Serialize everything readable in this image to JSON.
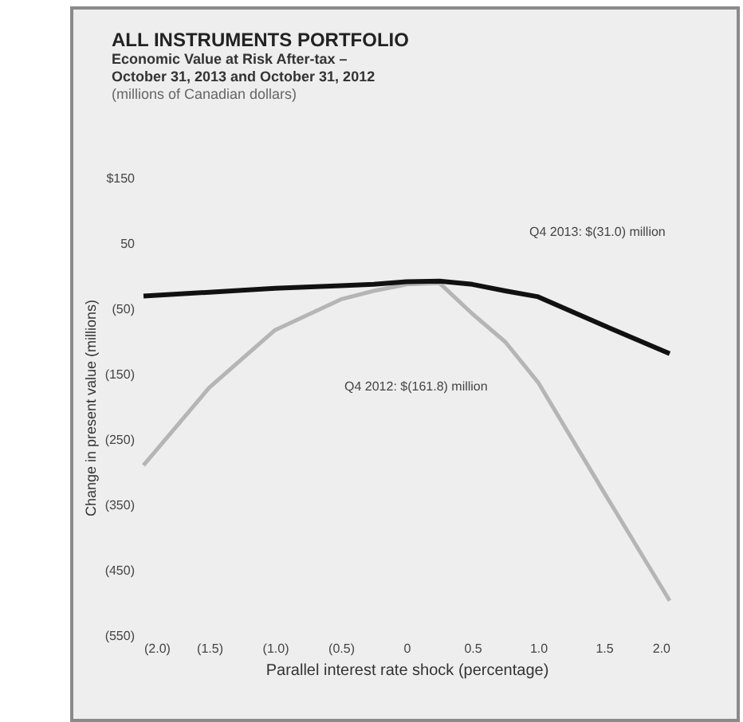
{
  "chart_data": {
    "type": "line",
    "title": "ALL INSTRUMENTS PORTFOLIO",
    "subtitle": "Economic Value at Risk After-tax –\nOctober 31, 2013 and October 31, 2012",
    "xlabel": "Parallel interest rate shock (percentage)",
    "ylabel": "Change in present value (millions)",
    "series": [
      {
        "color": "#b5b5b5",
        "x": [
          -2,
          -1.5,
          -1,
          -0.5,
          -0.25,
          0,
          0.25,
          0.5,
          0.75,
          1,
          1.5,
          2
        ],
        "values": [
          -289,
          -170,
          -82,
          -35,
          -22,
          -12,
          -10,
          -57,
          -100,
          -162,
          -330,
          -496
        ]
      },
      {
        "color": "#111111",
        "x": [
          -2,
          -1.5,
          -1,
          -0.5,
          -0.25,
          0,
          0.25,
          0.5,
          0.75,
          1,
          1.5,
          2
        ],
        "values": [
          -30,
          -24,
          -18,
          -14,
          -12,
          -8,
          -7,
          -12,
          -22,
          -31,
          -75,
          -118
        ]
      }
    ],
    "annotations": [
      "(millions of Canadian dollars)",
      "Q4 2013: $(31.0) million",
      "Q4 2012: $(161.8) million"
    ],
    "xlim": [
      -2,
      2
    ],
    "xticks": [
      {
        "value": -2,
        "label": "(2.0)"
      },
      {
        "value": -1.5,
        "label": "(1.5)"
      },
      {
        "value": -1,
        "label": "(1.0)"
      },
      {
        "value": -0.5,
        "label": "(0.5)"
      },
      0,
      0.5,
      {
        "value": 1,
        "label": "1.0"
      },
      1.5,
      {
        "value": 2,
        "label": "2.0"
      }
    ],
    "ylim": [
      -550,
      150
    ],
    "yticks": [
      {
        "value": 150,
        "label": "$150"
      },
      50,
      {
        "value": -50,
        "label": "(50)"
      },
      {
        "value": -150,
        "label": "(150)"
      },
      {
        "value": -250,
        "label": "(250)"
      },
      {
        "value": -350,
        "label": "(350)"
      },
      {
        "value": -450,
        "label": "(450)"
      },
      {
        "value": -550,
        "label": "(550)"
      }
    ],
    "grid": false
  }
}
